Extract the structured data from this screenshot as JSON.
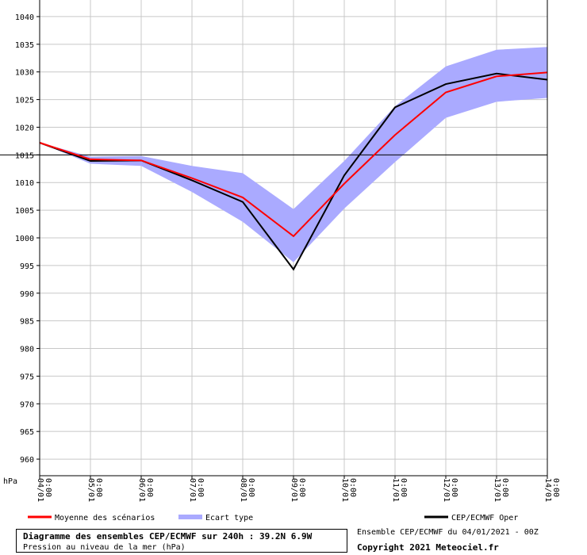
{
  "chart_data": {
    "type": "line",
    "title": "Diagramme des ensembles CEP/ECMWF sur 240h : 39.2N 6.9W",
    "subtitle": "Pression au niveau de la mer (hPa)",
    "ylabel": "hPa",
    "xlabel": "",
    "ylim": [
      957,
      1043
    ],
    "yticks": [
      960,
      965,
      970,
      975,
      980,
      985,
      990,
      995,
      1000,
      1005,
      1010,
      1015,
      1020,
      1025,
      1030,
      1035,
      1040
    ],
    "reference_line": 1015,
    "grid": true,
    "x": [
      "04/01 0:00",
      "05/01 0:00",
      "06/01 0:00",
      "07/01 0:00",
      "08/01 0:00",
      "09/01 0:00",
      "10/01 0:00",
      "11/01 0:00",
      "12/01 0:00",
      "13/01 0:00",
      "14/01 0:00"
    ],
    "series": [
      {
        "name": "Moyenne des scénarios",
        "color": "#ff0000",
        "values": [
          1017.2,
          1014.2,
          1014.0,
          1010.8,
          1007.3,
          1000.3,
          1009.8,
          1018.6,
          1026.3,
          1029.2,
          1029.9
        ]
      },
      {
        "name": "CEP/ECMWF Oper",
        "color": "#000000",
        "values": [
          1017.2,
          1013.9,
          1014.0,
          1010.4,
          1006.5,
          994.3,
          1011.3,
          1023.6,
          1027.8,
          1029.7,
          1028.6
        ]
      }
    ],
    "band": {
      "name": "Ecart type",
      "color": "#aaaaff",
      "upper": [
        1017.2,
        1014.7,
        1014.8,
        1013.0,
        1011.7,
        1005.2,
        1013.9,
        1023.8,
        1031.0,
        1034.0,
        1034.5
      ],
      "lower": [
        1017.2,
        1013.4,
        1013.0,
        1008.3,
        1002.9,
        995.6,
        1005.3,
        1013.7,
        1021.7,
        1024.6,
        1025.3
      ]
    },
    "legend_position": "bottom"
  },
  "footer": {
    "run_info": "Ensemble CEP/ECMWF du 04/01/2021 - 00Z",
    "copyright": "Copyright 2021 Meteociel.fr"
  }
}
